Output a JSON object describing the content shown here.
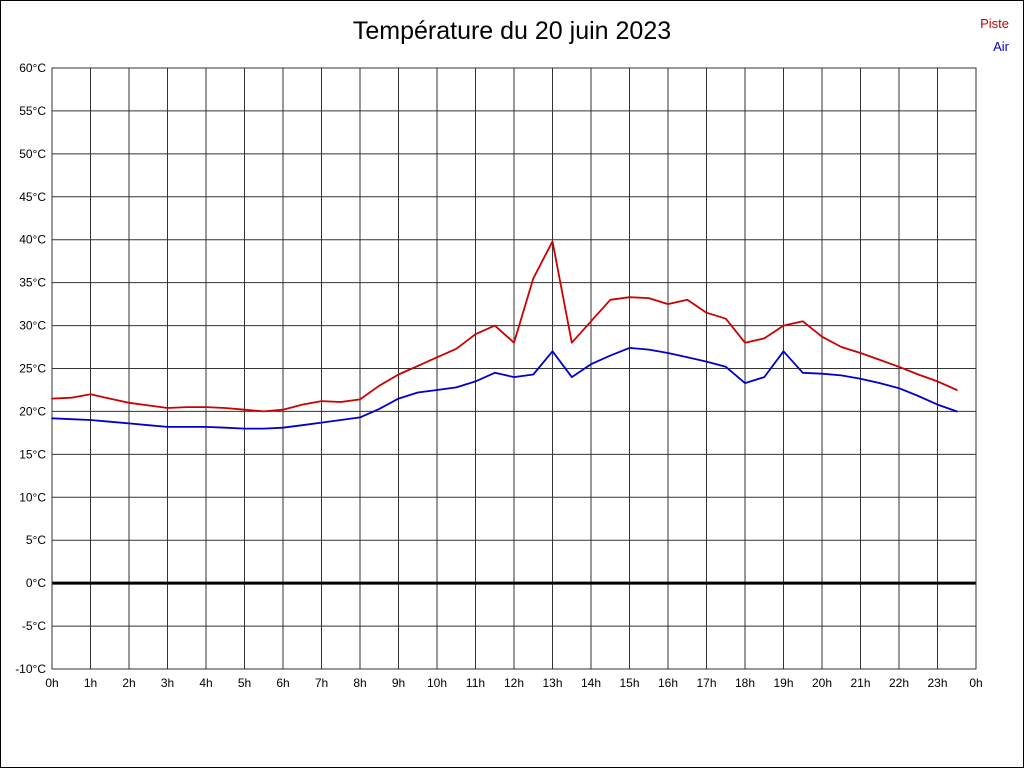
{
  "page": {
    "background_color": "#ffffff",
    "border_color": "#000000"
  },
  "chart_data": {
    "type": "line",
    "title": "Température du 20 juin 2023",
    "xlabel": "",
    "ylabel": "",
    "xlim": [
      0,
      24
    ],
    "ylim": [
      -10,
      60
    ],
    "grid": true,
    "grid_color": "#333333",
    "zero_line": true,
    "zero_line_color": "#000000",
    "legend_position": "top-right",
    "x": [
      0,
      0.5,
      1,
      1.5,
      2,
      2.5,
      3,
      3.5,
      4,
      4.5,
      5,
      5.5,
      6,
      6.5,
      7,
      7.5,
      8,
      8.5,
      9,
      9.5,
      10,
      10.5,
      11,
      11.5,
      12,
      12.5,
      13,
      13.5,
      14,
      14.5,
      15,
      15.5,
      16,
      16.5,
      17,
      17.5,
      18,
      18.5,
      19,
      19.5,
      20,
      20.5,
      21,
      21.5,
      22,
      22.5,
      23,
      23.5
    ],
    "series": [
      {
        "name": "Piste",
        "color": "#cc0000",
        "values": [
          21.5,
          21.6,
          22.0,
          21.5,
          21.0,
          20.7,
          20.4,
          20.5,
          20.5,
          20.4,
          20.2,
          20.0,
          20.2,
          20.8,
          21.2,
          21.1,
          21.4,
          23.0,
          24.3,
          25.3,
          26.3,
          27.3,
          29.0,
          30.0,
          28.0,
          35.5,
          39.8,
          28.0,
          30.5,
          33.0,
          33.3,
          33.2,
          32.5,
          33.0,
          31.5,
          30.8,
          28.0,
          28.5,
          30.0,
          30.5,
          28.7,
          27.5,
          26.8,
          26.0,
          25.2,
          24.3,
          23.5,
          22.5
        ]
      },
      {
        "name": "Air",
        "color": "#0000cc",
        "values": [
          19.2,
          19.1,
          19.0,
          18.8,
          18.6,
          18.4,
          18.2,
          18.2,
          18.2,
          18.1,
          18.0,
          18.0,
          18.1,
          18.4,
          18.7,
          19.0,
          19.3,
          20.3,
          21.5,
          22.2,
          22.5,
          22.8,
          23.5,
          24.5,
          24.0,
          24.3,
          27.0,
          24.0,
          25.5,
          26.5,
          27.4,
          27.2,
          26.8,
          26.3,
          25.8,
          25.2,
          23.3,
          24.0,
          27.0,
          24.5,
          24.4,
          24.2,
          23.8,
          23.3,
          22.7,
          21.8,
          20.8,
          20.0
        ]
      }
    ],
    "x_ticks": {
      "values": [
        0,
        1,
        2,
        3,
        4,
        5,
        6,
        7,
        8,
        9,
        10,
        11,
        12,
        13,
        14,
        15,
        16,
        17,
        18,
        19,
        20,
        21,
        22,
        23,
        24
      ],
      "labels": [
        "0h",
        "1h",
        "2h",
        "3h",
        "4h",
        "5h",
        "6h",
        "7h",
        "8h",
        "9h",
        "10h",
        "11h",
        "12h",
        "13h",
        "14h",
        "15h",
        "16h",
        "17h",
        "18h",
        "19h",
        "20h",
        "21h",
        "22h",
        "23h",
        "0h"
      ]
    },
    "y_ticks": {
      "values": [
        60,
        55,
        50,
        45,
        40,
        35,
        30,
        25,
        20,
        15,
        10,
        5,
        0,
        -5,
        -10
      ],
      "labels": [
        "60°C",
        "55°C",
        "50°C",
        "45°C",
        "40°C",
        "35°C",
        "30°C",
        "25°C",
        "20°C",
        "15°C",
        "10°C",
        "5°C",
        "0°C",
        "-5°C",
        "-10°C"
      ]
    }
  }
}
